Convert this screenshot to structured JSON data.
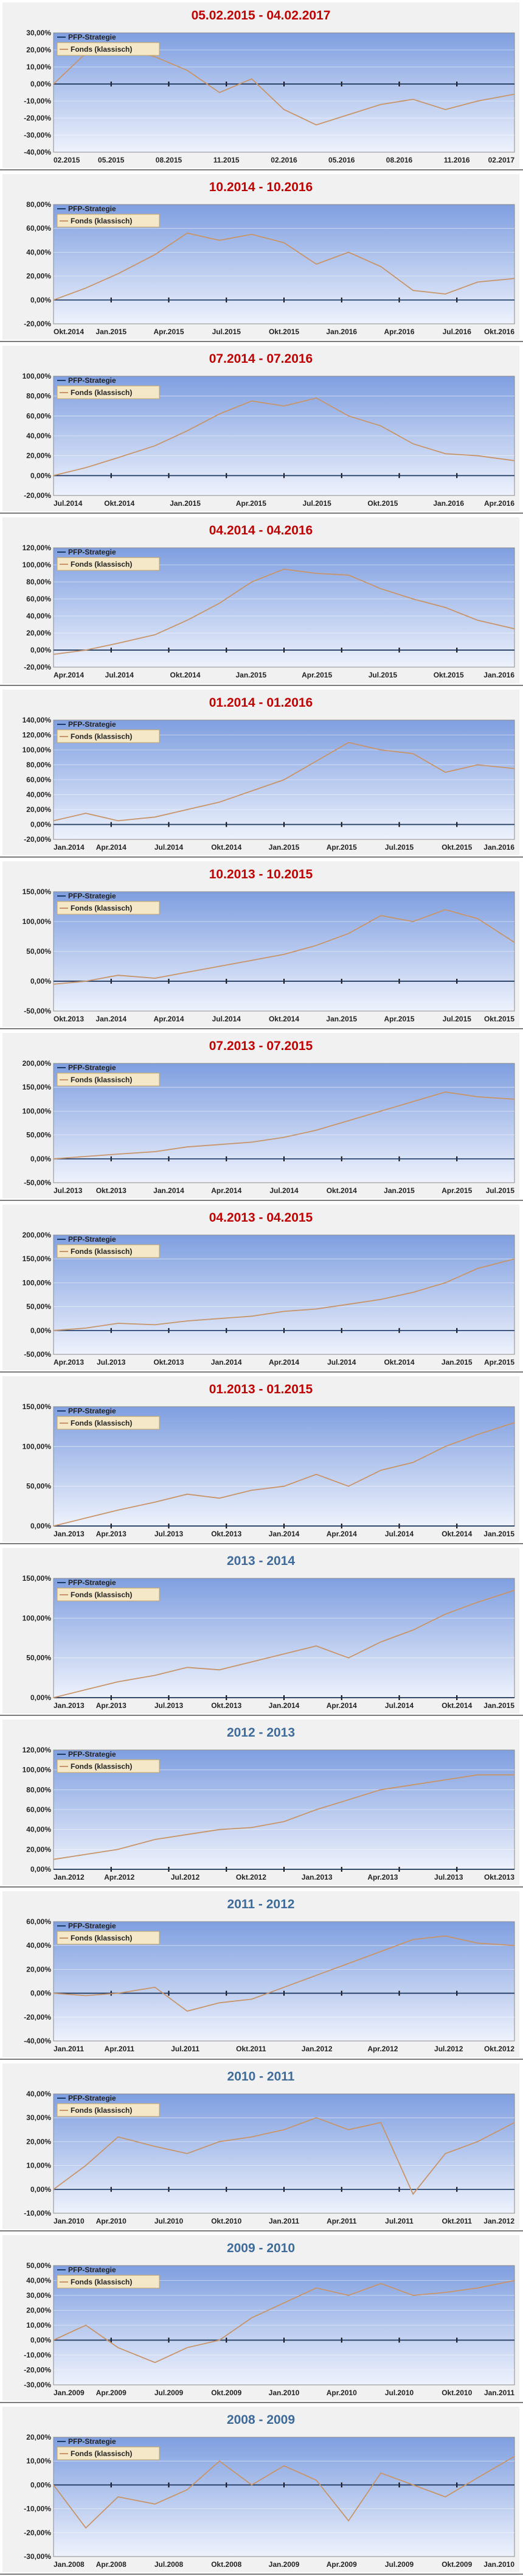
{
  "colors": {
    "fund": "#c8956a",
    "strategy": "#1f3a64",
    "title_red": "#c00000",
    "title_blue": "#3f6b9a"
  },
  "legend": {
    "strategy": "PFP-Strategie",
    "fund": "Fonds (klassisch)"
  },
  "chart_data": [
    {
      "type": "line",
      "title": "05.02.2015 - 04.02.2017",
      "title_color": "red",
      "ylim": [
        -40,
        30
      ],
      "yticks": [
        "30,00%",
        "20,00%",
        "10,00%",
        "0,00%",
        "-10,00%",
        "-20,00%",
        "-30,00%",
        "-40,00%"
      ],
      "xticks": [
        "02.2015",
        "05.2015",
        "08.2015",
        "11.2015",
        "02.2016",
        "05.2016",
        "08.2016",
        "11.2016",
        "02.2017"
      ],
      "x": [
        0,
        0.07,
        0.14,
        0.22,
        0.29,
        0.36,
        0.43,
        0.5,
        0.57,
        0.64,
        0.71,
        0.78,
        0.85,
        0.92,
        1
      ],
      "fund": [
        0,
        18,
        22,
        16,
        8,
        -5,
        3,
        -15,
        -24,
        -18,
        -12,
        -9,
        -15,
        -10,
        -6
      ],
      "strategy": [
        0,
        0,
        0,
        0,
        0,
        0,
        0,
        0,
        0,
        0,
        0,
        0,
        0,
        0,
        0
      ]
    },
    {
      "type": "line",
      "title": "10.2014 - 10.2016",
      "title_color": "red",
      "ylim": [
        -20,
        80
      ],
      "yticks": [
        "80,00%",
        "60,00%",
        "40,00%",
        "20,00%",
        "0,00%",
        "-20,00%"
      ],
      "xticks": [
        "Okt.2014",
        "Jan.2015",
        "Apr.2015",
        "Jul.2015",
        "Okt.2015",
        "Jan.2016",
        "Apr.2016",
        "Jul.2016",
        "Okt.2016"
      ],
      "x": [
        0,
        0.07,
        0.14,
        0.22,
        0.29,
        0.36,
        0.43,
        0.5,
        0.57,
        0.64,
        0.71,
        0.78,
        0.85,
        0.92,
        1
      ],
      "fund": [
        0,
        10,
        22,
        38,
        56,
        50,
        55,
        48,
        30,
        40,
        28,
        8,
        5,
        15,
        18
      ],
      "strategy": [
        0,
        0,
        0,
        0,
        0,
        0,
        0,
        0,
        0,
        0,
        0,
        0,
        0,
        0,
        0
      ]
    },
    {
      "type": "line",
      "title": "07.2014 - 07.2016",
      "title_color": "red",
      "ylim": [
        -20,
        100
      ],
      "yticks": [
        "100,00%",
        "80,00%",
        "60,00%",
        "40,00%",
        "20,00%",
        "0,00%",
        "-20,00%"
      ],
      "xticks": [
        "Jul.2014",
        "Okt.2014",
        "Jan.2015",
        "Apr.2015",
        "Jul.2015",
        "Okt.2015",
        "Jan.2016",
        "Apr.2016"
      ],
      "x": [
        0,
        0.07,
        0.14,
        0.22,
        0.29,
        0.36,
        0.43,
        0.5,
        0.57,
        0.64,
        0.71,
        0.78,
        0.85,
        0.92,
        1
      ],
      "fund": [
        0,
        8,
        18,
        30,
        45,
        62,
        75,
        70,
        78,
        60,
        50,
        32,
        22,
        20,
        15
      ],
      "strategy": [
        0,
        0,
        0,
        0,
        0,
        0,
        0,
        0,
        0,
        0,
        0,
        0,
        0,
        0,
        0
      ]
    },
    {
      "type": "line",
      "title": "04.2014 - 04.2016",
      "title_color": "red",
      "ylim": [
        -20,
        120
      ],
      "yticks": [
        "120,00%",
        "100,00%",
        "80,00%",
        "60,00%",
        "40,00%",
        "20,00%",
        "0,00%",
        "-20,00%"
      ],
      "xticks": [
        "Apr.2014",
        "Jul.2014",
        "Okt.2014",
        "Jan.2015",
        "Apr.2015",
        "Jul.2015",
        "Okt.2015",
        "Jan.2016"
      ],
      "x": [
        0,
        0.07,
        0.14,
        0.22,
        0.29,
        0.36,
        0.43,
        0.5,
        0.57,
        0.64,
        0.71,
        0.78,
        0.85,
        0.92,
        1
      ],
      "fund": [
        -5,
        0,
        8,
        18,
        35,
        55,
        80,
        95,
        90,
        88,
        72,
        60,
        50,
        35,
        25
      ],
      "strategy": [
        0,
        0,
        0,
        0,
        0,
        0,
        0,
        0,
        0,
        0,
        0,
        0,
        0,
        0,
        0
      ]
    },
    {
      "type": "line",
      "title": "01.2014 - 01.2016",
      "title_color": "red",
      "ylim": [
        -20,
        140
      ],
      "yticks": [
        "140,00%",
        "120,00%",
        "100,00%",
        "80,00%",
        "60,00%",
        "40,00%",
        "20,00%",
        "0,00%",
        "-20,00%"
      ],
      "xticks": [
        "Jan.2014",
        "Apr.2014",
        "Jul.2014",
        "Okt.2014",
        "Jan.2015",
        "Apr.2015",
        "Jul.2015",
        "Okt.2015",
        "Jan.2016"
      ],
      "x": [
        0,
        0.07,
        0.14,
        0.22,
        0.29,
        0.36,
        0.43,
        0.5,
        0.57,
        0.64,
        0.71,
        0.78,
        0.85,
        0.92,
        1
      ],
      "fund": [
        5,
        15,
        5,
        10,
        20,
        30,
        45,
        60,
        85,
        110,
        100,
        95,
        70,
        80,
        75
      ],
      "strategy": [
        0,
        0,
        0,
        0,
        0,
        0,
        0,
        0,
        0,
        0,
        0,
        0,
        0,
        0,
        0
      ]
    },
    {
      "type": "line",
      "title": "10.2013 - 10.2015",
      "title_color": "red",
      "ylim": [
        -50,
        150
      ],
      "yticks": [
        "150,00%",
        "100,00%",
        "50,00%",
        "0,00%",
        "-50,00%"
      ],
      "xticks": [
        "Okt.2013",
        "Jan.2014",
        "Apr.2014",
        "Jul.2014",
        "Okt.2014",
        "Jan.2015",
        "Apr.2015",
        "Jul.2015",
        "Okt.2015"
      ],
      "x": [
        0,
        0.07,
        0.14,
        0.22,
        0.29,
        0.36,
        0.43,
        0.5,
        0.57,
        0.64,
        0.71,
        0.78,
        0.85,
        0.92,
        1
      ],
      "fund": [
        -5,
        0,
        10,
        5,
        15,
        25,
        35,
        45,
        60,
        80,
        110,
        100,
        120,
        105,
        65
      ],
      "strategy": [
        0,
        0,
        0,
        0,
        0,
        0,
        0,
        0,
        0,
        0,
        0,
        0,
        0,
        0,
        0
      ]
    },
    {
      "type": "line",
      "title": "07.2013 - 07.2015",
      "title_color": "red",
      "ylim": [
        -50,
        200
      ],
      "yticks": [
        "200,00%",
        "150,00%",
        "100,00%",
        "50,00%",
        "0,00%",
        "-50,00%"
      ],
      "xticks": [
        "Jul.2013",
        "Okt.2013",
        "Jan.2014",
        "Apr.2014",
        "Jul.2014",
        "Okt.2014",
        "Jan.2015",
        "Apr.2015",
        "Jul.2015"
      ],
      "x": [
        0,
        0.07,
        0.14,
        0.22,
        0.29,
        0.36,
        0.43,
        0.5,
        0.57,
        0.64,
        0.71,
        0.78,
        0.85,
        0.92,
        1
      ],
      "fund": [
        0,
        5,
        10,
        15,
        25,
        30,
        35,
        45,
        60,
        80,
        100,
        120,
        140,
        130,
        125
      ],
      "strategy": [
        0,
        0,
        0,
        0,
        0,
        0,
        0,
        0,
        0,
        0,
        0,
        0,
        0,
        0,
        0
      ]
    },
    {
      "type": "line",
      "title": "04.2013 - 04.2015",
      "title_color": "red",
      "ylim": [
        -50,
        200
      ],
      "yticks": [
        "200,00%",
        "150,00%",
        "100,00%",
        "50,00%",
        "0,00%",
        "-50,00%"
      ],
      "xticks": [
        "Apr.2013",
        "Jul.2013",
        "Okt.2013",
        "Jan.2014",
        "Apr.2014",
        "Jul.2014",
        "Okt.2014",
        "Jan.2015",
        "Apr.2015"
      ],
      "x": [
        0,
        0.07,
        0.14,
        0.22,
        0.29,
        0.36,
        0.43,
        0.5,
        0.57,
        0.64,
        0.71,
        0.78,
        0.85,
        0.92,
        1
      ],
      "fund": [
        0,
        5,
        15,
        12,
        20,
        25,
        30,
        40,
        45,
        55,
        65,
        80,
        100,
        130,
        150
      ],
      "strategy": [
        0,
        0,
        0,
        0,
        0,
        0,
        0,
        0,
        0,
        0,
        0,
        0,
        0,
        0,
        0
      ]
    },
    {
      "type": "line",
      "title": "01.2013 - 01.2015",
      "title_color": "red",
      "ylim": [
        0,
        150
      ],
      "yticks": [
        "150,00%",
        "100,00%",
        "50,00%",
        "0,00%"
      ],
      "xticks": [
        "Jan.2013",
        "Apr.2013",
        "Jul.2013",
        "Okt.2013",
        "Jan.2014",
        "Apr.2014",
        "Jul.2014",
        "Okt.2014",
        "Jan.2015"
      ],
      "x": [
        0,
        0.07,
        0.14,
        0.22,
        0.29,
        0.36,
        0.43,
        0.5,
        0.57,
        0.64,
        0.71,
        0.78,
        0.85,
        0.92,
        1
      ],
      "fund": [
        0,
        10,
        20,
        30,
        40,
        35,
        45,
        50,
        65,
        50,
        70,
        80,
        100,
        115,
        130
      ],
      "strategy": [
        0,
        0,
        0,
        0,
        0,
        0,
        0,
        0,
        0,
        0,
        0,
        0,
        0,
        0,
        0
      ]
    },
    {
      "type": "line",
      "title": "2013 - 2014",
      "title_color": "blue",
      "ylim": [
        0,
        150
      ],
      "yticks": [
        "150,00%",
        "100,00%",
        "50,00%",
        "0,00%"
      ],
      "xticks": [
        "Jan.2013",
        "Apr.2013",
        "Jul.2013",
        "Okt.2013",
        "Jan.2014",
        "Apr.2014",
        "Jul.2014",
        "Okt.2014",
        "Jan.2015"
      ],
      "x": [
        0,
        0.07,
        0.14,
        0.22,
        0.29,
        0.36,
        0.43,
        0.5,
        0.57,
        0.64,
        0.71,
        0.78,
        0.85,
        0.92,
        1
      ],
      "fund": [
        0,
        10,
        20,
        28,
        38,
        35,
        45,
        55,
        65,
        50,
        70,
        85,
        105,
        120,
        135
      ],
      "strategy": [
        0,
        0,
        0,
        0,
        0,
        0,
        0,
        0,
        0,
        0,
        0,
        0,
        0,
        0,
        0
      ]
    },
    {
      "type": "line",
      "title": "2012 - 2013",
      "title_color": "blue",
      "ylim": [
        0,
        120
      ],
      "yticks": [
        "120,00%",
        "100,00%",
        "80,00%",
        "60,00%",
        "40,00%",
        "20,00%",
        "0,00%"
      ],
      "xticks": [
        "Jan.2012",
        "Apr.2012",
        "Jul.2012",
        "Okt.2012",
        "Jan.2013",
        "Apr.2013",
        "Jul.2013",
        "Okt.2013"
      ],
      "x": [
        0,
        0.07,
        0.14,
        0.22,
        0.29,
        0.36,
        0.43,
        0.5,
        0.57,
        0.64,
        0.71,
        0.78,
        0.85,
        0.92,
        1
      ],
      "fund": [
        10,
        15,
        20,
        30,
        35,
        40,
        42,
        48,
        60,
        70,
        80,
        85,
        90,
        95,
        95
      ],
      "strategy": [
        0,
        0,
        0,
        0,
        0,
        0,
        0,
        0,
        0,
        0,
        0,
        0,
        0,
        0,
        0
      ]
    },
    {
      "type": "line",
      "title": "2011 - 2012",
      "title_color": "blue",
      "ylim": [
        -40,
        60
      ],
      "yticks": [
        "60,00%",
        "40,00%",
        "20,00%",
        "0,00%",
        "-20,00%",
        "-40,00%"
      ],
      "xticks": [
        "Jan.2011",
        "Apr.2011",
        "Jul.2011",
        "Okt.2011",
        "Jan.2012",
        "Apr.2012",
        "Jul.2012",
        "Okt.2012"
      ],
      "x": [
        0,
        0.07,
        0.14,
        0.22,
        0.29,
        0.36,
        0.43,
        0.5,
        0.57,
        0.64,
        0.71,
        0.78,
        0.85,
        0.92,
        1
      ],
      "fund": [
        0,
        -2,
        0,
        5,
        -15,
        -8,
        -5,
        5,
        15,
        25,
        35,
        45,
        48,
        42,
        40
      ],
      "strategy": [
        0,
        0,
        0,
        0,
        0,
        0,
        0,
        0,
        0,
        0,
        0,
        0,
        0,
        0,
        0
      ]
    },
    {
      "type": "line",
      "title": "2010 - 2011",
      "title_color": "blue",
      "ylim": [
        -10,
        40
      ],
      "yticks": [
        "40,00%",
        "30,00%",
        "20,00%",
        "10,00%",
        "0,00%",
        "-10,00%"
      ],
      "xticks": [
        "Jan.2010",
        "Apr.2010",
        "Jul.2010",
        "Okt.2010",
        "Jan.2011",
        "Apr.2011",
        "Jul.2011",
        "Okt.2011",
        "Jan.2012"
      ],
      "x": [
        0,
        0.07,
        0.14,
        0.22,
        0.29,
        0.36,
        0.43,
        0.5,
        0.57,
        0.64,
        0.71,
        0.78,
        0.85,
        0.92,
        1
      ],
      "fund": [
        0,
        10,
        22,
        18,
        15,
        20,
        22,
        25,
        30,
        25,
        28,
        -2,
        15,
        20,
        28
      ],
      "strategy": [
        0,
        0,
        0,
        0,
        0,
        0,
        0,
        0,
        0,
        0,
        0,
        0,
        0,
        0,
        0
      ]
    },
    {
      "type": "line",
      "title": "2009 - 2010",
      "title_color": "blue",
      "ylim": [
        -30,
        50
      ],
      "yticks": [
        "50,00%",
        "40,00%",
        "30,00%",
        "20,00%",
        "10,00%",
        "0,00%",
        "-10,00%",
        "-20,00%",
        "-30,00%"
      ],
      "xticks": [
        "Jan.2009",
        "Apr.2009",
        "Jul.2009",
        "Okt.2009",
        "Jan.2010",
        "Apr.2010",
        "Jul.2010",
        "Okt.2010",
        "Jan.2011"
      ],
      "x": [
        0,
        0.07,
        0.14,
        0.22,
        0.29,
        0.36,
        0.43,
        0.5,
        0.57,
        0.64,
        0.71,
        0.78,
        0.85,
        0.92,
        1
      ],
      "fund": [
        0,
        10,
        -5,
        -15,
        -5,
        0,
        15,
        25,
        35,
        30,
        38,
        30,
        32,
        35,
        40
      ],
      "strategy": [
        0,
        0,
        0,
        0,
        0,
        0,
        0,
        0,
        0,
        0,
        0,
        0,
        0,
        0,
        0
      ]
    },
    {
      "type": "line",
      "title": "2008 - 2009",
      "title_color": "blue",
      "ylim": [
        -30,
        20
      ],
      "yticks": [
        "20,00%",
        "10,00%",
        "0,00%",
        "-10,00%",
        "-20,00%",
        "-30,00%"
      ],
      "xticks": [
        "Jan.2008",
        "Apr.2008",
        "Jul.2008",
        "Okt.2008",
        "Jan.2009",
        "Apr.2009",
        "Jul.2009",
        "Okt.2009",
        "Jan.2010"
      ],
      "x": [
        0,
        0.07,
        0.14,
        0.22,
        0.29,
        0.36,
        0.43,
        0.5,
        0.57,
        0.64,
        0.71,
        0.78,
        0.85,
        0.92,
        1
      ],
      "fund": [
        0,
        -18,
        -5,
        -8,
        -2,
        10,
        0,
        8,
        2,
        -15,
        5,
        0,
        -5,
        3,
        12
      ],
      "strategy": [
        0,
        0,
        0,
        0,
        0,
        0,
        0,
        0,
        0,
        0,
        0,
        0,
        0,
        0,
        0
      ]
    }
  ]
}
